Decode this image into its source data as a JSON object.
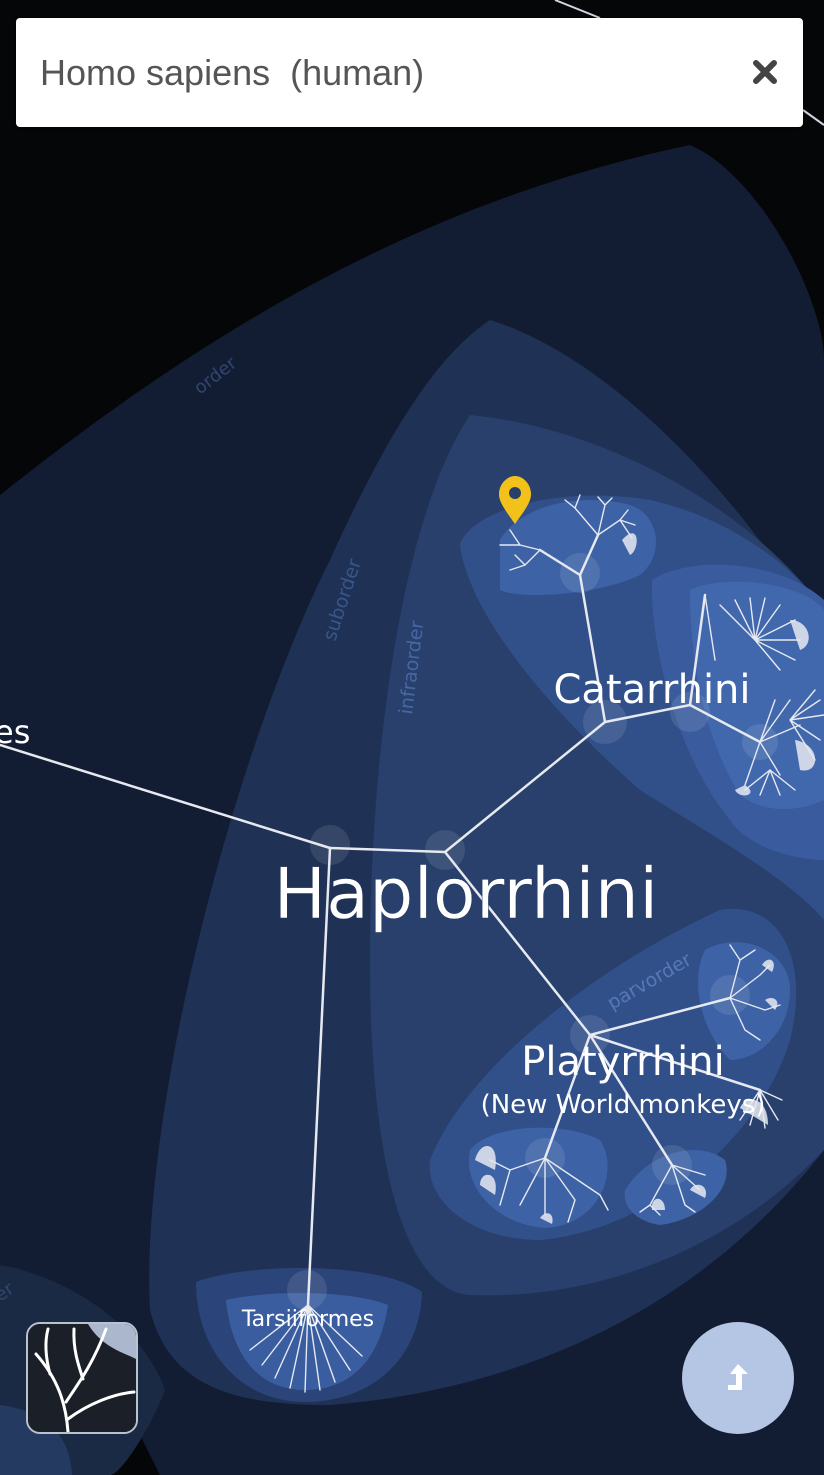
{
  "search": {
    "value": "Homo sapiens  (human)"
  },
  "tree": {
    "labels": {
      "main": "Haplorrhini",
      "catarrhini": "Catarrhini",
      "platyrrhini": "Platyrrhini",
      "platyrrhini_common": "(New World monkeys)",
      "tarsiiformes": "Tarsiiformes",
      "clipped_left": "es"
    },
    "ranks": {
      "order": "order",
      "suborder": "suborder",
      "infraorder": "infraorder",
      "parvorder": "parvorder",
      "clipped_rank": "er"
    }
  },
  "icons": {
    "close": "close-icon",
    "location_pin": "location-pin-icon",
    "logo": "onezoom-tree-logo-icon",
    "up": "arrow-up-icon"
  },
  "colors": {
    "background": "#050608",
    "region_outer": "#1b2a46",
    "region_inner": "#3a5a94",
    "branch": "#e6e9f0",
    "pin": "#f2c21b",
    "up_button": "#b5c6e4"
  }
}
